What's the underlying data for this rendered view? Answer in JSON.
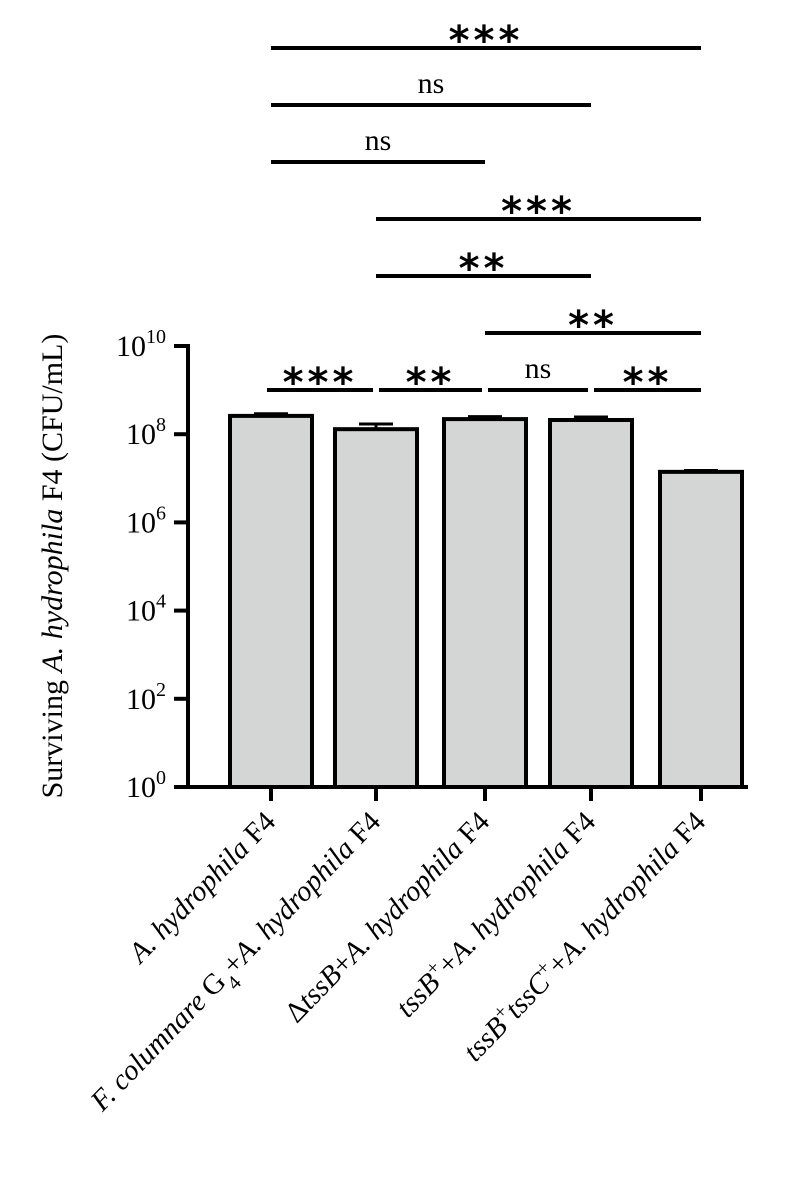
{
  "chart_data": {
    "type": "bar",
    "scale": "log10",
    "ylim_exp": [
      0,
      10
    ],
    "tick_exps": [
      0,
      2,
      4,
      6,
      8,
      10
    ],
    "tick_base": "10",
    "ylabel": {
      "pre": "Surviving ",
      "italic": "A. hydrophila",
      "post": " F4 (CFU/mL)"
    },
    "categories": [
      [
        {
          "t": "A. hydrophila",
          "i": true
        },
        {
          "t": " F4"
        }
      ],
      [
        {
          "t": "F. columnare",
          "i": true
        },
        {
          "t": " G"
        },
        {
          "t": "4",
          "sub": true
        },
        {
          "t": "+"
        },
        {
          "t": "A. hydrophila",
          "i": true
        },
        {
          "t": " F4"
        }
      ],
      [
        {
          "t": "Δ"
        },
        {
          "t": "tssB",
          "i": true
        },
        {
          "t": "+"
        },
        {
          "t": "A. hydrophila",
          "i": true
        },
        {
          "t": " F4"
        }
      ],
      [
        {
          "t": "tssB",
          "i": true
        },
        {
          "t": "+",
          "sup": true
        },
        {
          "t": "+"
        },
        {
          "t": "A. hydrophila",
          "i": true
        },
        {
          "t": " F4"
        }
      ],
      [
        {
          "t": "tssB",
          "i": true
        },
        {
          "t": "+",
          "sup": true
        },
        {
          "t": "tssC",
          "i": true
        },
        {
          "t": "+",
          "sup": true
        },
        {
          "t": "+"
        },
        {
          "t": "A. hydrophila",
          "i": true
        },
        {
          "t": " F4"
        }
      ]
    ],
    "values": [
      260000000,
      130000000,
      220000000,
      210000000,
      14000000
    ],
    "errors_upper": [
      290000000,
      170000000,
      250000000,
      245000000,
      15000000
    ],
    "bar_color": "#d4d6d5",
    "ink_color": "#000000",
    "significance": [
      {
        "from": 0,
        "to": 4,
        "label": "***"
      },
      {
        "from": 0,
        "to": 3,
        "label": "ns"
      },
      {
        "from": 0,
        "to": 2,
        "label": "ns"
      },
      {
        "from": 1,
        "to": 4,
        "label": "***"
      },
      {
        "from": 1,
        "to": 3,
        "label": "**"
      },
      {
        "from": 2,
        "to": 4,
        "label": "**"
      },
      {
        "from": 0,
        "to": 1,
        "label": "***"
      },
      {
        "from": 1,
        "to": 2,
        "label": "**"
      },
      {
        "from": 2,
        "to": 3,
        "label": "ns"
      },
      {
        "from": 3,
        "to": 4,
        "label": "**"
      }
    ]
  }
}
